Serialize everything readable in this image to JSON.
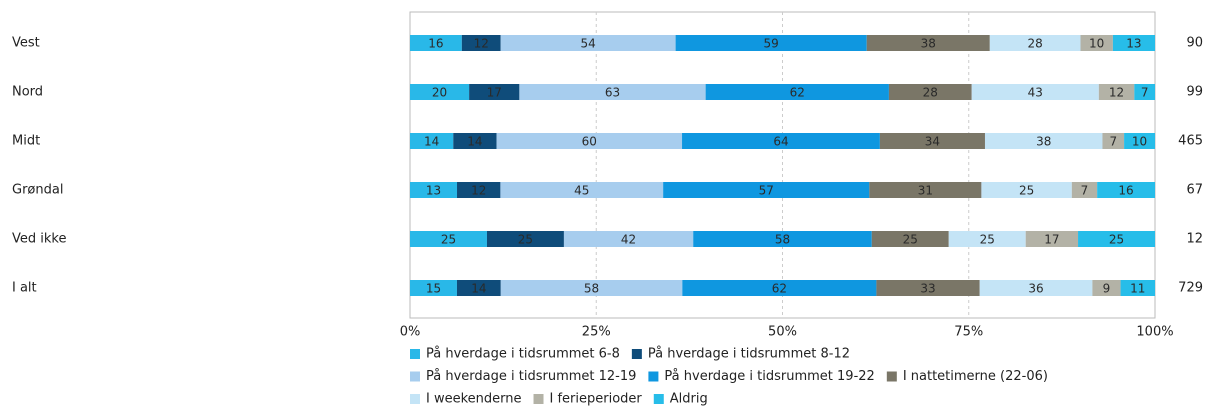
{
  "chart_data": {
    "type": "stacked-bar-100",
    "categories": [
      "Vest",
      "Nord",
      "Midt",
      "Grøndal",
      "Ved ikke",
      "I alt"
    ],
    "series": [
      {
        "name": "På hverdage i tidsrummet 6-8",
        "color": "#29b8e8",
        "values": [
          16,
          20,
          14,
          13,
          25,
          15
        ]
      },
      {
        "name": "På hverdage i tidsrummet 8-12",
        "color": "#0f4c7a",
        "values": [
          12,
          17,
          14,
          12,
          25,
          14
        ]
      },
      {
        "name": "På hverdage i tidsrummet 12-19",
        "color": "#a7cdee",
        "values": [
          54,
          63,
          60,
          45,
          42,
          58
        ]
      },
      {
        "name": "På hverdage i tidsrummet 19-22",
        "color": "#0f97e0",
        "values": [
          59,
          62,
          64,
          57,
          58,
          62
        ]
      },
      {
        "name": "I nattetimerne (22-06)",
        "color": "#7a7667",
        "values": [
          38,
          28,
          34,
          31,
          25,
          33
        ]
      },
      {
        "name": "I weekenderne",
        "color": "#c4e4f6",
        "values": [
          28,
          43,
          38,
          25,
          25,
          36
        ]
      },
      {
        "name": "I ferieperioder",
        "color": "#b3b2a6",
        "values": [
          10,
          12,
          7,
          7,
          17,
          9
        ]
      },
      {
        "name": "Aldrig",
        "color": "#27bde9",
        "values": [
          13,
          7,
          10,
          16,
          25,
          11
        ]
      }
    ],
    "n_values": [
      90,
      99,
      465,
      67,
      12,
      729
    ],
    "xlim": [
      0,
      100
    ],
    "xticks": [
      {
        "value": 0,
        "label": "0%"
      },
      {
        "value": 25,
        "label": "25%"
      },
      {
        "value": 50,
        "label": "50%"
      },
      {
        "value": 75,
        "label": "75%"
      },
      {
        "value": 100,
        "label": "100%"
      }
    ],
    "grid": true
  }
}
